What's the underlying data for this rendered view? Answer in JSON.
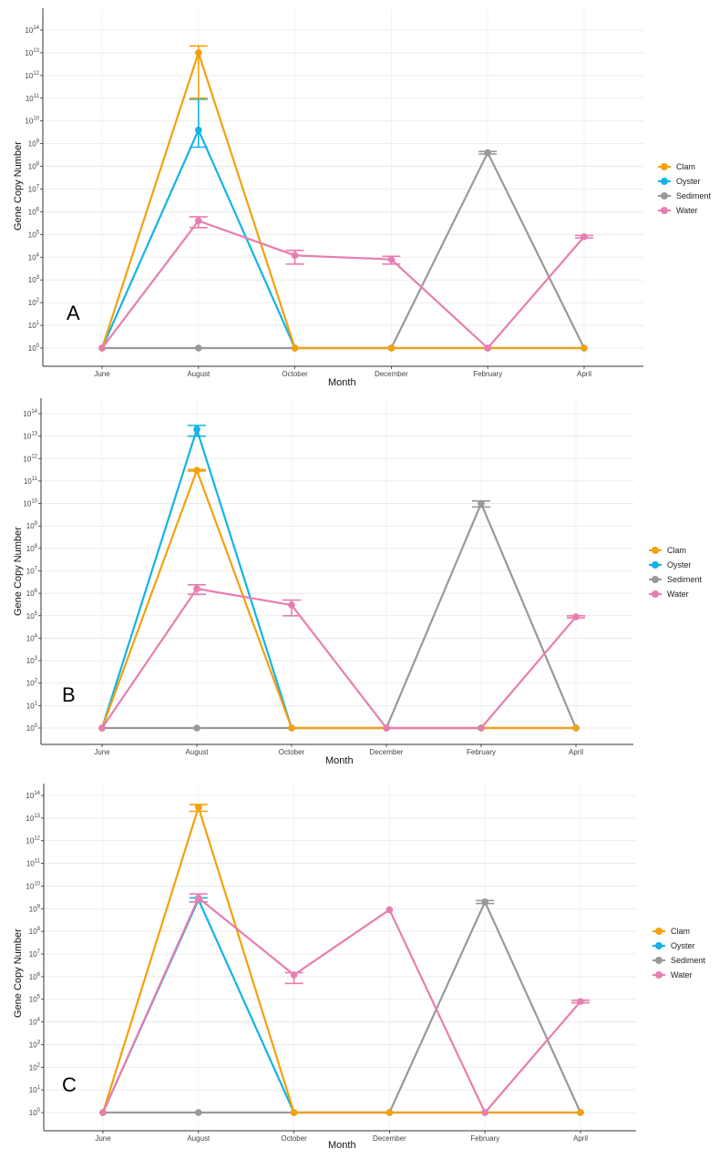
{
  "legend": [
    {
      "name": "Clam",
      "color": "#f5a00c"
    },
    {
      "name": "Oyster",
      "color": "#12b3e6"
    },
    {
      "name": "Sediment",
      "color": "#999999"
    },
    {
      "name": "Water",
      "color": "#e87db0"
    }
  ],
  "chart_data": [
    {
      "type": "line",
      "panel_label": "A",
      "xlabel": "Month",
      "ylabel": "Gene Copy Number",
      "y_scale": "log10",
      "ylim": [
        1,
        100000000000000.0
      ],
      "grid": true,
      "legend_position": "right",
      "categories": [
        "June",
        "August",
        "October",
        "December",
        "February",
        "April"
      ],
      "series": [
        {
          "name": "Clam",
          "values": [
            1,
            10000000000000.0,
            1,
            1,
            1,
            1
          ],
          "err_low": [
            null,
            100000000000.0,
            null,
            null,
            null,
            null
          ],
          "err_high": [
            null,
            20000000000000.0,
            null,
            null,
            null,
            null
          ]
        },
        {
          "name": "Oyster",
          "values": [
            1,
            4000000000.0,
            1,
            1,
            1,
            1
          ],
          "err_low": [
            null,
            700000000.0,
            null,
            null,
            null,
            null
          ],
          "err_high": [
            null,
            90000000000.0,
            null,
            null,
            null,
            null
          ]
        },
        {
          "name": "Sediment",
          "values": [
            1,
            1,
            1,
            1,
            400000000.0,
            1
          ],
          "err_low": [
            null,
            null,
            null,
            null,
            350000000.0,
            null
          ],
          "err_high": [
            null,
            null,
            null,
            null,
            450000000.0,
            null
          ]
        },
        {
          "name": "Water",
          "values": [
            1,
            400000.0,
            12000.0,
            8000.0,
            1,
            80000.0
          ],
          "err_low": [
            null,
            200000.0,
            5000.0,
            5000.0,
            null,
            70000.0
          ],
          "err_high": [
            null,
            600000.0,
            20000.0,
            11000.0,
            null,
            90000.0
          ]
        }
      ]
    },
    {
      "type": "line",
      "panel_label": "B",
      "xlabel": "Month",
      "ylabel": "Gene Copy Number",
      "y_scale": "log10",
      "ylim": [
        1,
        100000000000000.0
      ],
      "grid": true,
      "legend_position": "right",
      "categories": [
        "June",
        "August",
        "October",
        "December",
        "February",
        "April"
      ],
      "series": [
        {
          "name": "Clam",
          "values": [
            1,
            300000000000.0,
            1,
            1,
            1,
            1
          ],
          "err_low": [
            null,
            280000000000.0,
            null,
            null,
            null,
            null
          ],
          "err_high": [
            null,
            320000000000.0,
            null,
            null,
            null,
            null
          ]
        },
        {
          "name": "Oyster",
          "values": [
            1,
            20000000000000.0,
            1,
            1,
            1,
            1
          ],
          "err_low": [
            null,
            10000000000000.0,
            null,
            null,
            null,
            null
          ],
          "err_high": [
            null,
            30000000000000.0,
            null,
            null,
            null,
            null
          ]
        },
        {
          "name": "Sediment",
          "values": [
            1,
            1,
            1,
            1,
            10000000000.0,
            1
          ],
          "err_low": [
            null,
            null,
            null,
            null,
            7000000000.0,
            null
          ],
          "err_high": [
            null,
            null,
            null,
            null,
            13000000000.0,
            null
          ]
        },
        {
          "name": "Water",
          "values": [
            1,
            1600000.0,
            300000.0,
            1,
            1,
            90000.0
          ],
          "err_low": [
            null,
            900000.0,
            100000.0,
            null,
            null,
            80000.0
          ],
          "err_high": [
            null,
            2400000.0,
            500000.0,
            null,
            null,
            100000.0
          ]
        }
      ]
    },
    {
      "type": "line",
      "panel_label": "C",
      "xlabel": "Month",
      "ylabel": "Gene Copy Number",
      "y_scale": "log10",
      "ylim": [
        1,
        100000000000000.0
      ],
      "grid": true,
      "legend_position": "right",
      "categories": [
        "June",
        "August",
        "October",
        "December",
        "February",
        "April"
      ],
      "series": [
        {
          "name": "Clam",
          "values": [
            1,
            30000000000000.0,
            1,
            1,
            1,
            1
          ],
          "err_low": [
            null,
            20000000000000.0,
            null,
            null,
            null,
            null
          ],
          "err_high": [
            null,
            40000000000000.0,
            null,
            null,
            null,
            null
          ]
        },
        {
          "name": "Oyster",
          "values": [
            1,
            2500000000.0,
            1,
            1,
            1,
            1
          ],
          "err_low": [
            null,
            2000000000.0,
            null,
            null,
            null,
            null
          ],
          "err_high": [
            null,
            3000000000.0,
            null,
            null,
            null,
            null
          ]
        },
        {
          "name": "Sediment",
          "values": [
            1,
            1,
            1,
            1,
            2000000000.0,
            1
          ],
          "err_low": [
            null,
            null,
            null,
            null,
            1700000000.0,
            null
          ],
          "err_high": [
            null,
            null,
            null,
            null,
            2300000000.0,
            null
          ]
        },
        {
          "name": "Water",
          "values": [
            1,
            3000000000.0,
            1200000.0,
            900000000.0,
            1,
            80000.0
          ],
          "err_low": [
            null,
            2000000000.0,
            500000.0,
            null,
            null,
            70000.0
          ],
          "err_high": [
            null,
            4500000000.0,
            1500000.0,
            null,
            null,
            90000.0
          ]
        }
      ]
    }
  ]
}
